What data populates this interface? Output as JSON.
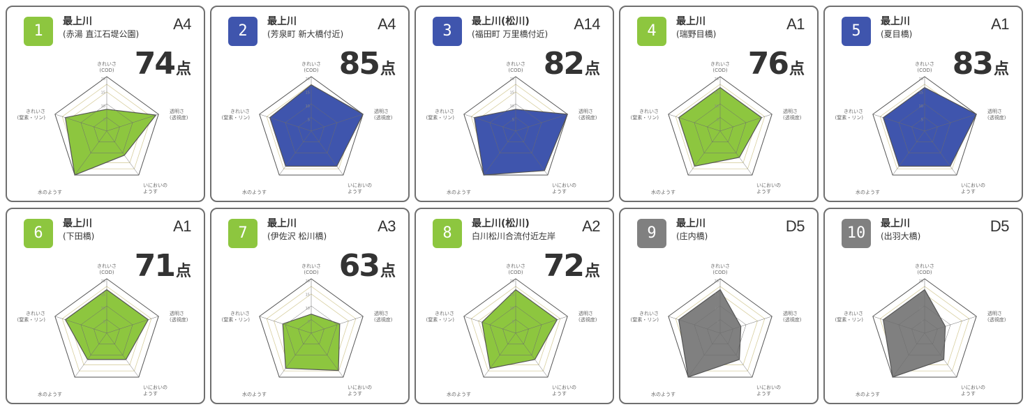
{
  "axis_labels": [
    [
      "きれいさ",
      "(COD)"
    ],
    [
      "透明さ",
      "(透視度)"
    ],
    [
      "いにおいの",
      "ようす"
    ],
    [
      "水のようす",
      ""
    ],
    [
      "きれいさ",
      "(窒素・リン)"
    ]
  ],
  "axis_ticks": [
    "20",
    "15",
    "10",
    "5"
  ],
  "score_unit": "点",
  "colors": {
    "green": "#8dc63f",
    "blue": "#3f55ad",
    "gray": "#808080",
    "stroke": "#555555",
    "web": "#d8cfa0"
  },
  "chart_data": [
    {
      "type": "radar",
      "number": "1",
      "badge_color": "green",
      "river": "最上川",
      "place": "(赤湯 直江石堤公園)",
      "grade": "A4",
      "score": "74",
      "values": [
        8,
        19,
        11,
        20,
        16
      ]
    },
    {
      "type": "radar",
      "number": "2",
      "badge_color": "blue",
      "river": "最上川",
      "place": "(芳泉町 新大橋付近)",
      "grade": "A4",
      "score": "85",
      "values": [
        17,
        20,
        16,
        16,
        16
      ]
    },
    {
      "type": "radar",
      "number": "3",
      "badge_color": "blue",
      "river": "最上川(松川)",
      "place": "(福田町 万里橋付近)",
      "grade": "A14",
      "score": "82",
      "values": [
        8,
        20,
        18,
        20,
        16
      ]
    },
    {
      "type": "radar",
      "number": "4",
      "badge_color": "green",
      "river": "最上川",
      "place": "(瑞野目橋)",
      "grade": "A1",
      "score": "76",
      "values": [
        16,
        16,
        12,
        16,
        16
      ]
    },
    {
      "type": "radar",
      "number": "5",
      "badge_color": "blue",
      "river": "最上川",
      "place": "(夏目橋)",
      "grade": "A1",
      "score": "83",
      "values": [
        16,
        20,
        16,
        16,
        16
      ]
    },
    {
      "type": "radar",
      "number": "6",
      "badge_color": "green",
      "river": "最上川",
      "place": "(下田橋)",
      "grade": "A1",
      "score": "71",
      "values": [
        16,
        16,
        12,
        12,
        16
      ]
    },
    {
      "type": "radar",
      "number": "7",
      "badge_color": "green",
      "river": "最上川",
      "place": "(伊佐沢 松川橋)",
      "grade": "A3",
      "score": "63",
      "values": [
        7,
        11,
        17,
        16,
        11
      ]
    },
    {
      "type": "radar",
      "number": "8",
      "badge_color": "green",
      "river": "最上川(松川)",
      "place": "白川松川合流付近左岸",
      "grade": "A2",
      "score": "72",
      "values": [
        16,
        16,
        12,
        16,
        13
      ]
    },
    {
      "type": "radar",
      "number": "9",
      "badge_color": "gray",
      "river": "最上川",
      "place": "(庄内橋)",
      "grade": "D5",
      "score": "",
      "values": [
        16,
        8,
        12,
        20,
        16
      ]
    },
    {
      "type": "radar",
      "number": "10",
      "badge_color": "gray",
      "river": "最上川",
      "place": "(出羽大橋)",
      "grade": "D5",
      "score": "",
      "values": [
        16,
        8,
        12,
        20,
        16
      ]
    }
  ]
}
